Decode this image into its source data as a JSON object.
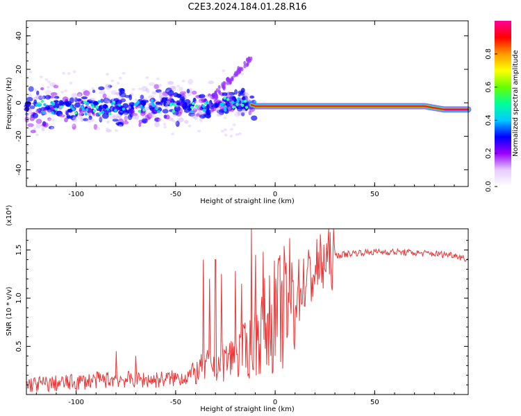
{
  "title": "C2E3.2024.184.01.28.R16",
  "chart_data": [
    {
      "type": "heatmap",
      "xlabel": "Height of straight line (km)",
      "ylabel": "Frequency (Hz)",
      "xlim": [
        -125,
        97
      ],
      "ylim": [
        -50,
        49
      ],
      "xticks": [
        -100,
        -50,
        0,
        50
      ],
      "yticks": [
        -40,
        -20,
        0,
        20,
        40
      ],
      "colorbar": {
        "label": "Normalized spectral amplitude",
        "range": [
          0,
          1
        ],
        "ticks": [
          0.0,
          0.2,
          0.4,
          0.6,
          0.8
        ],
        "colormap": [
          "#ffffff",
          "#e6ccff",
          "#9900ff",
          "#0000ff",
          "#00ccff",
          "#00ff99",
          "#66ff00",
          "#ffff00",
          "#ff9900",
          "#ff0000",
          "#ff0099"
        ]
      },
      "ridge": {
        "x": [
          -125,
          -100,
          -75,
          -50,
          -30,
          -20,
          -15,
          -10,
          0,
          25,
          50,
          75,
          80,
          85,
          90,
          97
        ],
        "y": [
          -3,
          -3,
          -3,
          -1,
          -2,
          0,
          0,
          -2,
          -2,
          -2,
          -2,
          -2,
          -3,
          -4,
          -4,
          -4
        ]
      }
    },
    {
      "type": "line",
      "xlabel": "Height of straight line (km)",
      "ylabel": "SNR (10 * v/v)",
      "y_multiplier": "(x10⁴)",
      "xlim": [
        -125,
        97
      ],
      "ylim": [
        0,
        1.72
      ],
      "xticks": [
        -100,
        -50,
        0,
        50
      ],
      "yticks": [
        0.5,
        1.0,
        1.5
      ],
      "ytick_labels": [
        "0.5",
        "1.0",
        "1.5"
      ],
      "series": [
        {
          "color": "#ee3333",
          "x": [
            -125,
            -110,
            -100,
            -90,
            -80,
            -70,
            -60,
            -50,
            -40,
            -35,
            -30,
            -25,
            -20,
            -15,
            -12,
            -10,
            -5,
            0,
            5,
            10,
            15,
            20,
            25,
            30,
            40,
            50,
            60,
            70,
            80,
            90,
            97
          ],
          "y": [
            0.03,
            0.05,
            0.08,
            0.12,
            0.14,
            0.13,
            0.13,
            0.16,
            0.22,
            0.3,
            0.32,
            0.36,
            0.4,
            0.45,
            0.5,
            0.55,
            0.72,
            0.82,
            0.9,
            1.03,
            1.17,
            1.28,
            1.38,
            1.44,
            1.47,
            1.48,
            1.48,
            1.47,
            1.46,
            1.45,
            1.4
          ]
        }
      ],
      "peaks": {
        "x": [
          -80,
          -70,
          -36,
          -33,
          -30,
          -27,
          -20,
          -17,
          -12,
          -10,
          -6
        ],
        "y": [
          0.45,
          0.4,
          1.4,
          1.2,
          1.4,
          1.25,
          1.28,
          1.15,
          1.72,
          1.45,
          1.48
        ]
      }
    }
  ]
}
